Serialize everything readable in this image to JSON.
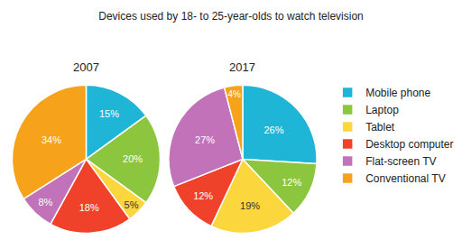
{
  "title": "Devices used by 18- to 25-year-olds to watch television",
  "legend": "right",
  "chart_data": [
    {
      "type": "pie",
      "title": "2007",
      "categories": [
        "Mobile phone",
        "Laptop",
        "Tablet",
        "Desktop computer",
        "Flat-screen TV",
        "Conventional TV"
      ],
      "values": [
        15,
        20,
        5,
        18,
        8,
        34
      ],
      "value_labels": [
        "15%",
        "20%",
        "5%",
        "18%",
        "8%",
        "34%"
      ],
      "colors": [
        "#1fb5d6",
        "#8cc63f",
        "#fcd63d",
        "#f0412a",
        "#c272b8",
        "#f7a21b"
      ],
      "data_labels": true
    },
    {
      "type": "pie",
      "title": "2017",
      "categories": [
        "Mobile phone",
        "Laptop",
        "Tablet",
        "Desktop computer",
        "Flat-screen TV",
        "Conventional TV"
      ],
      "values": [
        26,
        12,
        19,
        12,
        27,
        4
      ],
      "value_labels": [
        "26%",
        "12%",
        "19%",
        "12%",
        "27%",
        "4%"
      ],
      "colors": [
        "#1fb5d6",
        "#8cc63f",
        "#fcd63d",
        "#f0412a",
        "#c272b8",
        "#f7a21b"
      ],
      "data_labels": true
    }
  ]
}
